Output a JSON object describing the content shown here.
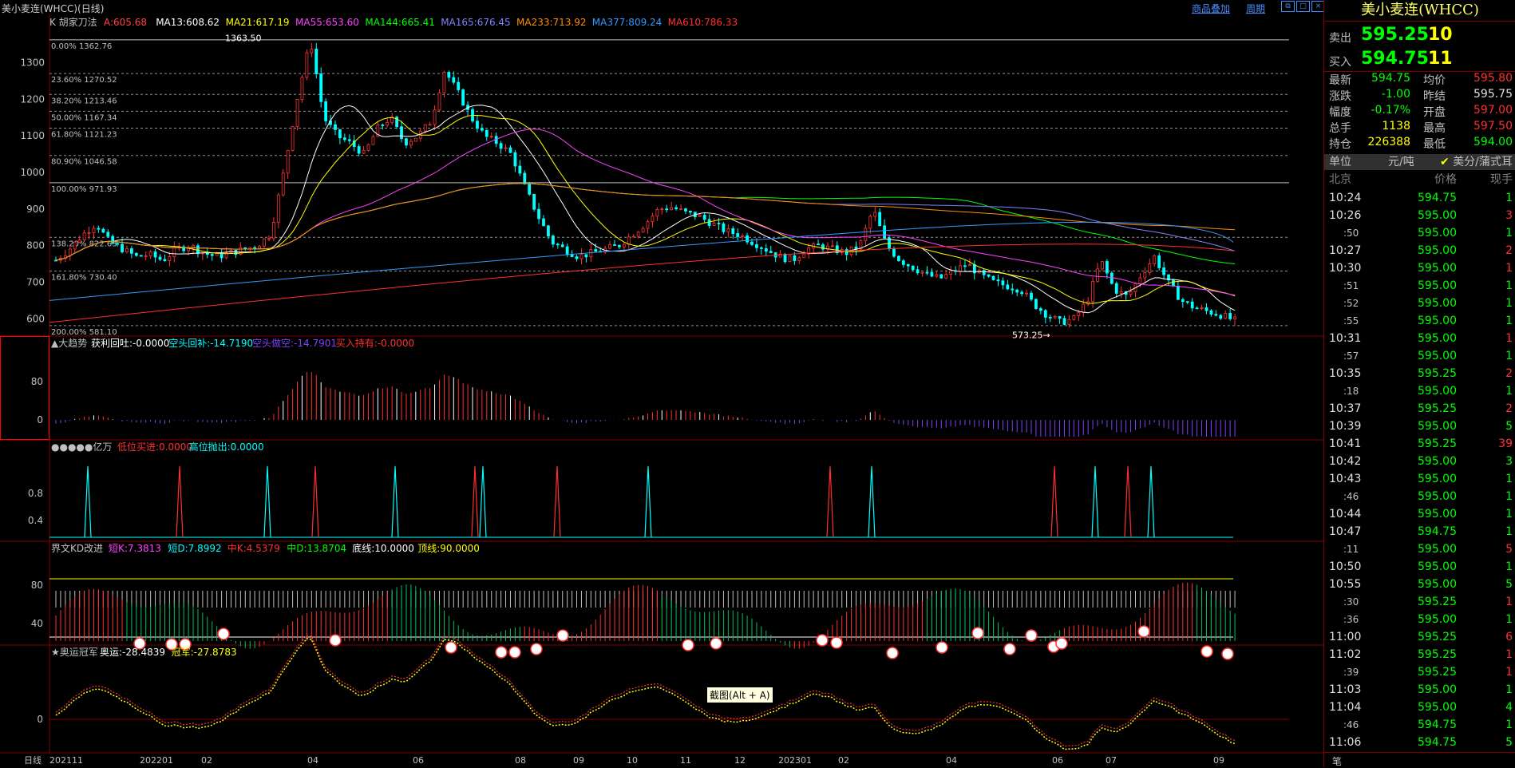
{
  "window": {
    "title": "美小麦连(WHCC)(日线)",
    "link_overlay": "商品叠加",
    "link_period": "周期"
  },
  "colors": {
    "up": "#ff3333",
    "down": "#00ffff",
    "green": "#00ff00",
    "yellow": "#ffff00",
    "frame": "#800000"
  },
  "chart_data": [
    {
      "type": "candlestick",
      "panel": "main",
      "title": "K 胡家刀法",
      "indicators": [
        {
          "name": "A",
          "value": "605.68",
          "color": "#ff4040"
        },
        {
          "name": "MA13",
          "value": "608.62",
          "color": "#ffffff"
        },
        {
          "name": "MA21",
          "value": "617.19",
          "color": "#ffff00"
        },
        {
          "name": "MA55",
          "value": "653.60",
          "color": "#ff40ff"
        },
        {
          "name": "MA144",
          "value": "665.41",
          "color": "#00ff00"
        },
        {
          "name": "MA165",
          "value": "676.45",
          "color": "#8080ff"
        },
        {
          "name": "MA233",
          "value": "713.92",
          "color": "#ff8c00"
        },
        {
          "name": "MA377",
          "value": "809.24",
          "color": "#3399ff"
        },
        {
          "name": "MA610",
          "value": "786.33",
          "color": "#ff3030"
        }
      ],
      "y_ticks": [
        600,
        700,
        800,
        900,
        1000,
        1100,
        1200,
        1300
      ],
      "ylim": [
        570,
        1380
      ],
      "fib_levels": [
        {
          "label": "0.00% 1362.76",
          "value": 1362.76
        },
        {
          "label": "23.60% 1270.52",
          "value": 1270.52
        },
        {
          "label": "38.20% 1213.46",
          "value": 1213.46
        },
        {
          "label": "50.00% 1167.34",
          "value": 1167.34
        },
        {
          "label": "61.80% 1121.23",
          "value": 1121.23
        },
        {
          "label": "80.90% 1046.58",
          "value": 1046.58
        },
        {
          "label": "100.00% 971.93",
          "value": 971.93
        },
        {
          "label": "138.20% 822.63",
          "value": 822.63
        },
        {
          "label": "161.80% 730.40",
          "value": 730.4
        },
        {
          "label": "200.00% 581.10",
          "value": 581.1
        }
      ],
      "annotations": [
        {
          "text": "1363.50",
          "value": 1363.5
        },
        {
          "text": "573.25→",
          "value": 573.25
        }
      ],
      "price_path": [
        760,
        790,
        830,
        860,
        810,
        790,
        770,
        775,
        760,
        790,
        800,
        780,
        770,
        780,
        790,
        800,
        830,
        1000,
        1200,
        1363,
        1150,
        1100,
        1080,
        1050,
        1120,
        1150,
        1080,
        1100,
        1140,
        1280,
        1220,
        1150,
        1100,
        1080,
        1050,
        960,
        880,
        810,
        790,
        770,
        780,
        790,
        800,
        830,
        860,
        900,
        905,
        890,
        880,
        860,
        840,
        830,
        810,
        790,
        770,
        760,
        790,
        800,
        790,
        780,
        800,
        900,
        800,
        760,
        740,
        720,
        710,
        730,
        750,
        720,
        700,
        690,
        680,
        640,
        610,
        590,
        600,
        650,
        760,
        680,
        660,
        720,
        770,
        700,
        650,
        630,
        620,
        610,
        595
      ]
    },
    {
      "type": "bar",
      "panel": "trend",
      "title": "▲大趋势",
      "legend": [
        {
          "text": "获利回吐:-0.0000",
          "color": "#ffffff"
        },
        {
          "text": "空头回补:-14.7190",
          "color": "#00ffff"
        },
        {
          "text": "空头做空:-14.7901",
          "color": "#8040ff"
        },
        {
          "text": "买入持有:-0.0000",
          "color": "#ff3030"
        }
      ],
      "y_ticks": [
        0,
        80
      ]
    },
    {
      "type": "line",
      "panel": "signals",
      "title": "●●●●●亿万",
      "legend": [
        {
          "text": "低位买进:0.0000",
          "color": "#ff3030"
        },
        {
          "text": "高位抛出:0.0000",
          "color": "#00ffff"
        }
      ],
      "y_ticks": [
        0.4,
        0.8
      ]
    },
    {
      "type": "bar",
      "panel": "kd",
      "title": "界文KD改进",
      "legend": [
        {
          "text": "短K:7.3813",
          "color": "#ff40ff"
        },
        {
          "text": "短D:7.8992",
          "color": "#00ffff"
        },
        {
          "text": "中K:4.5379",
          "color": "#ff3030"
        },
        {
          "text": "中D:13.8704",
          "color": "#00ff00"
        },
        {
          "text": "底线:10.0000",
          "color": "#ffffff"
        },
        {
          "text": "顶线:90.0000",
          "color": "#ffff00"
        }
      ],
      "y_ticks": [
        40,
        80
      ]
    },
    {
      "type": "line",
      "panel": "olympic",
      "title": "★奥运冠军",
      "legend": [
        {
          "text": "奥运:-28.4839",
          "color": "#ffffff"
        },
        {
          "text": "冠军:-27.8783",
          "color": "#ffff00"
        }
      ],
      "y_ticks": [
        0
      ]
    }
  ],
  "x_axis": {
    "prefix": "日线",
    "labels": [
      "202111",
      "202201",
      "02",
      "04",
      "06",
      "08",
      "09",
      "10",
      "11",
      "12",
      "202301",
      "02",
      "04",
      "06",
      "07",
      "09"
    ]
  },
  "tooltip": "截图(Alt + A)",
  "quote": {
    "name": "美小麦连(WHCC)",
    "sell_label": "卖出",
    "sell_price": "595.25",
    "sell_vol": "10",
    "buy_label": "买入",
    "buy_price": "594.75",
    "buy_vol": "11",
    "stats": [
      {
        "k1": "最新",
        "v1": "594.75",
        "c1": "#00ff00",
        "k2": "均价",
        "v2": "595.80",
        "c2": "#ff3030"
      },
      {
        "k1": "涨跌",
        "v1": "-1.00",
        "c1": "#00ff00",
        "k2": "昨结",
        "v2": "595.75",
        "c2": "#e0e0e0"
      },
      {
        "k1": "幅度",
        "v1": "-0.17%",
        "c1": "#00ff00",
        "k2": "开盘",
        "v2": "597.00",
        "c2": "#ff3030"
      },
      {
        "k1": "总手",
        "v1": "1138",
        "c1": "#ffff00",
        "k2": "最高",
        "v2": "597.50",
        "c2": "#ff3030"
      },
      {
        "k1": "持仓",
        "v1": "226388",
        "c1": "#ffff00",
        "k2": "最低",
        "v2": "594.00",
        "c2": "#00ff00"
      }
    ],
    "unit_label": "单位",
    "unit_value": "元/吨",
    "unit_option": "美分/蒲式耳",
    "ticks_header": {
      "time": "北京",
      "price": "价格",
      "vol": "现手"
    },
    "ticks": [
      {
        "t": "10:24",
        "p": "594.75",
        "v": "1",
        "vc": "#00ff00",
        "s": false
      },
      {
        "t": "10:26",
        "p": "595.00",
        "v": "3",
        "vc": "#ff3030",
        "s": false
      },
      {
        "t": ":50",
        "p": "595.00",
        "v": "1",
        "vc": "#00ff00",
        "s": true
      },
      {
        "t": "10:27",
        "p": "595.00",
        "v": "2",
        "vc": "#ff3030",
        "s": false
      },
      {
        "t": "10:30",
        "p": "595.00",
        "v": "1",
        "vc": "#ff3030",
        "s": false
      },
      {
        "t": ":51",
        "p": "595.00",
        "v": "1",
        "vc": "#00ff00",
        "s": true
      },
      {
        "t": ":52",
        "p": "595.00",
        "v": "1",
        "vc": "#00ff00",
        "s": true
      },
      {
        "t": ":55",
        "p": "595.00",
        "v": "1",
        "vc": "#00ff00",
        "s": true
      },
      {
        "t": "10:31",
        "p": "595.00",
        "v": "1",
        "vc": "#ff3030",
        "s": false
      },
      {
        "t": ":57",
        "p": "595.00",
        "v": "1",
        "vc": "#00ff00",
        "s": true
      },
      {
        "t": "10:35",
        "p": "595.25",
        "v": "2",
        "vc": "#ff3030",
        "s": false
      },
      {
        "t": ":18",
        "p": "595.00",
        "v": "1",
        "vc": "#00ff00",
        "s": true
      },
      {
        "t": "10:37",
        "p": "595.25",
        "v": "2",
        "vc": "#ff3030",
        "s": false
      },
      {
        "t": "10:39",
        "p": "595.00",
        "v": "5",
        "vc": "#00ff00",
        "s": false
      },
      {
        "t": "10:41",
        "p": "595.25",
        "v": "39",
        "vc": "#ff3030",
        "s": false
      },
      {
        "t": "10:42",
        "p": "595.00",
        "v": "3",
        "vc": "#00ff00",
        "s": false
      },
      {
        "t": "10:43",
        "p": "595.00",
        "v": "1",
        "vc": "#00ff00",
        "s": false
      },
      {
        "t": ":46",
        "p": "595.00",
        "v": "1",
        "vc": "#00ff00",
        "s": true
      },
      {
        "t": "10:44",
        "p": "595.00",
        "v": "1",
        "vc": "#00ff00",
        "s": false
      },
      {
        "t": "10:47",
        "p": "594.75",
        "v": "1",
        "vc": "#00ff00",
        "s": false
      },
      {
        "t": ":11",
        "p": "595.00",
        "v": "5",
        "vc": "#ff3030",
        "s": true
      },
      {
        "t": "10:50",
        "p": "595.00",
        "v": "1",
        "vc": "#00ff00",
        "s": false
      },
      {
        "t": "10:55",
        "p": "595.00",
        "v": "5",
        "vc": "#00ff00",
        "s": false
      },
      {
        "t": ":30",
        "p": "595.25",
        "v": "1",
        "vc": "#ff3030",
        "s": true
      },
      {
        "t": ":36",
        "p": "595.00",
        "v": "1",
        "vc": "#00ff00",
        "s": true
      },
      {
        "t": "11:00",
        "p": "595.25",
        "v": "6",
        "vc": "#ff3030",
        "s": false
      },
      {
        "t": "11:02",
        "p": "595.25",
        "v": "1",
        "vc": "#ff3030",
        "s": false
      },
      {
        "t": ":39",
        "p": "595.25",
        "v": "1",
        "vc": "#ff3030",
        "s": true
      },
      {
        "t": "11:03",
        "p": "595.00",
        "v": "1",
        "vc": "#00ff00",
        "s": false
      },
      {
        "t": "11:04",
        "p": "595.00",
        "v": "4",
        "vc": "#00ff00",
        "s": false
      },
      {
        "t": ":46",
        "p": "594.75",
        "v": "1",
        "vc": "#00ff00",
        "s": true
      },
      {
        "t": "11:06",
        "p": "594.75",
        "v": "5",
        "vc": "#00ff00",
        "s": false
      }
    ],
    "footer": "笔"
  }
}
